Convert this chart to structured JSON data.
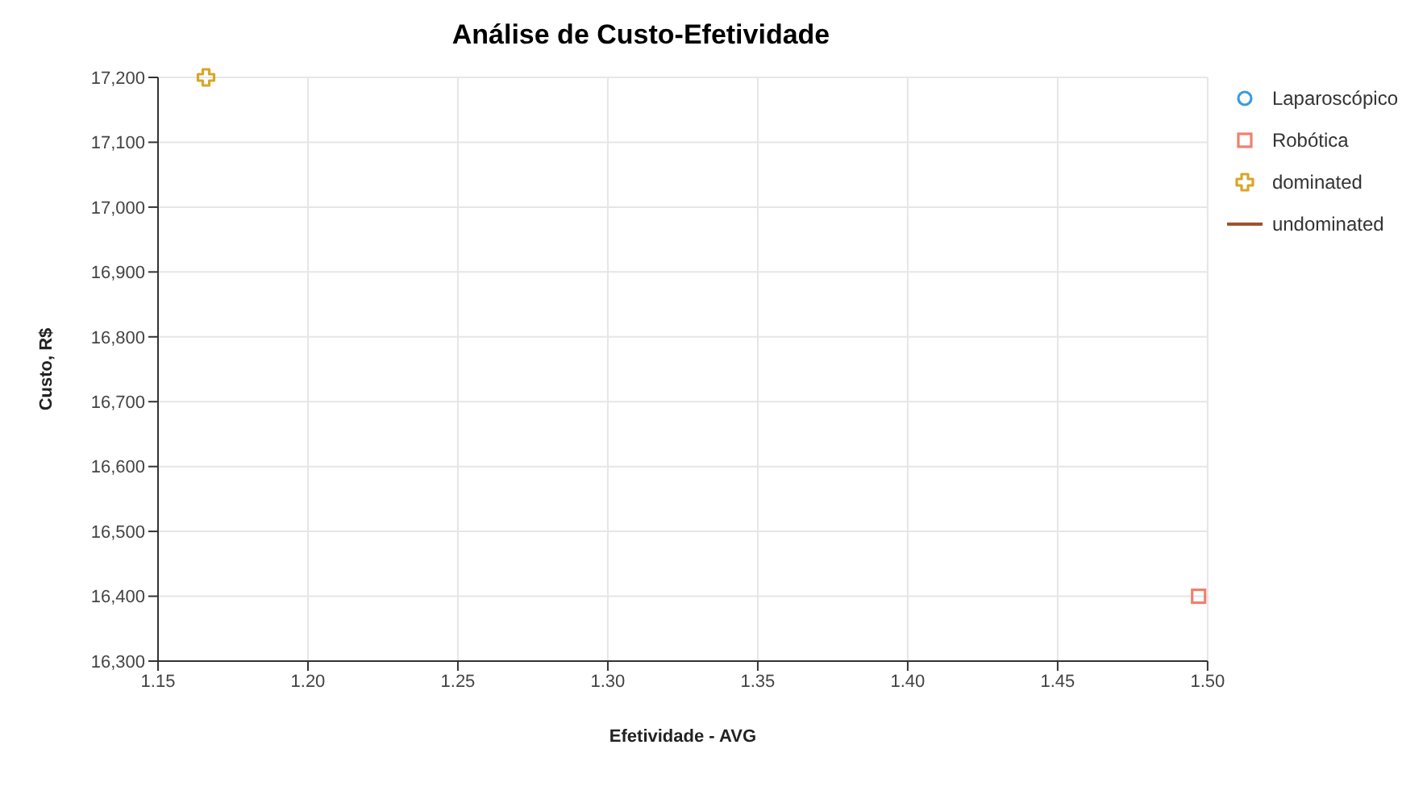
{
  "chart_data": {
    "type": "scatter",
    "title": "Análise de Custo-Efetividade",
    "xlabel": "Efetividade - AVG",
    "ylabel": "Custo, R$",
    "series": [
      {
        "name": "Laparoscópico",
        "marker": "circle",
        "color": "#3b9be0"
      },
      {
        "name": "Robótica",
        "marker": "square",
        "color": "#f0806e",
        "x": [
          1.497
        ],
        "values": [
          16400
        ]
      },
      {
        "name": "dominated",
        "marker": "cross",
        "color": "#d8a628",
        "x": [
          1.166
        ],
        "values": [
          17200
        ]
      },
      {
        "name": "undominated",
        "type": "line",
        "marker": "none",
        "color": "#a0522d"
      }
    ],
    "xlim": [
      1.15,
      1.5
    ],
    "xticks": [
      {
        "value": 1.15,
        "label": "1.15"
      },
      {
        "value": 1.2,
        "label": "1.20"
      },
      {
        "value": 1.25,
        "label": "1.25"
      },
      {
        "value": 1.3,
        "label": "1.30"
      },
      {
        "value": 1.35,
        "label": "1.35"
      },
      {
        "value": 1.4,
        "label": "1.40"
      },
      {
        "value": 1.45,
        "label": "1.45"
      },
      {
        "value": 1.5,
        "label": "1.50"
      }
    ],
    "ylim": [
      16300,
      17200
    ],
    "yticks": [
      {
        "value": 16300,
        "label": "16,300"
      },
      {
        "value": 16400,
        "label": "16,400"
      },
      {
        "value": 16500,
        "label": "16,500"
      },
      {
        "value": 16600,
        "label": "16,600"
      },
      {
        "value": 16700,
        "label": "16,700"
      },
      {
        "value": 16800,
        "label": "16,800"
      },
      {
        "value": 16900,
        "label": "16,900"
      },
      {
        "value": 17000,
        "label": "17,000"
      },
      {
        "value": 17100,
        "label": "17,100"
      },
      {
        "value": 17200,
        "label": "17,200"
      }
    ],
    "grid": true,
    "legend": "top right"
  }
}
